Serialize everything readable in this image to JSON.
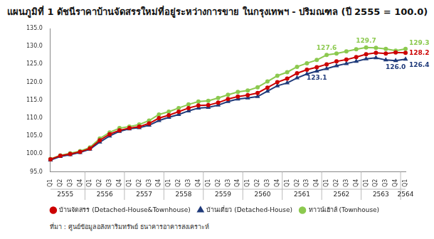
{
  "chart_data": {
    "type": "line",
    "title": "แผนภูมิที่ 1 ดัชนีราคาบ้านจัดสรรใหม่ที่อยู่ระหว่างการขาย ในกรุงเทพฯ - ปริมณฑล (ปี 2555 = 100.0)",
    "source": "ที่มา : ศูนย์ข้อมูลอสังหาริมทรัพย์ ธนาคารอาคารสงเคราะห์",
    "categories": [
      "Q1",
      "Q2",
      "Q3",
      "Q4",
      "Q1",
      "Q2",
      "Q3",
      "Q4",
      "Q1",
      "Q2",
      "Q3",
      "Q4",
      "Q1",
      "Q2",
      "Q3",
      "Q4",
      "Q1",
      "Q2",
      "Q3",
      "Q4",
      "Q1",
      "Q2",
      "Q3",
      "Q4",
      "Q1",
      "Q2",
      "Q3",
      "Q4",
      "Q1",
      "Q2",
      "Q3",
      "Q4",
      "Q1",
      "Q2",
      "Q3",
      "Q4",
      "Q1"
    ],
    "category_groups": [
      "2555",
      "2555",
      "2555",
      "2555",
      "2556",
      "2556",
      "2556",
      "2556",
      "2557",
      "2557",
      "2557",
      "2557",
      "2558",
      "2558",
      "2558",
      "2558",
      "2559",
      "2559",
      "2559",
      "2559",
      "2560",
      "2560",
      "2560",
      "2560",
      "2561",
      "2561",
      "2561",
      "2561",
      "2562",
      "2562",
      "2562",
      "2562",
      "2563",
      "2563",
      "2563",
      "2563",
      "2564"
    ],
    "ylim": [
      95,
      135
    ],
    "yticks": [
      {
        "value": 95,
        "label": "95.0"
      },
      {
        "value": 100,
        "label": "100.0"
      },
      {
        "value": 105,
        "label": "105.0"
      },
      {
        "value": 110,
        "label": "110.0"
      },
      {
        "value": 115,
        "label": "115.0"
      },
      {
        "value": 120,
        "label": "120.0"
      },
      {
        "value": 125,
        "label": "125.0"
      },
      {
        "value": 130,
        "label": "130.0"
      },
      {
        "value": 135,
        "label": "135.0"
      }
    ],
    "grid": false,
    "legend": "bottom",
    "series": [
      {
        "name": "บ้านจัดสรร (Detached-House&Townhouse)",
        "color": "#cc0000",
        "marker": "circle",
        "values": [
          98.5,
          99.5,
          100.0,
          100.6,
          101.5,
          103.8,
          105.5,
          106.6,
          107.2,
          107.6,
          108.5,
          110.0,
          110.8,
          111.8,
          112.8,
          113.5,
          113.6,
          114.3,
          115.3,
          116.0,
          116.4,
          117.0,
          118.5,
          120.0,
          121.0,
          122.5,
          123.5,
          124.2,
          125.0,
          125.8,
          126.3,
          127.0,
          127.8,
          128.2,
          128.0,
          128.3,
          128.2
        ],
        "value_labels": [
          null,
          null,
          null,
          null,
          null,
          null,
          null,
          null,
          null,
          null,
          null,
          null,
          null,
          null,
          null,
          null,
          null,
          null,
          null,
          null,
          null,
          null,
          null,
          null,
          null,
          null,
          null,
          null,
          null,
          null,
          null,
          null,
          null,
          null,
          null,
          null,
          "128.2"
        ]
      },
      {
        "name": "บ้านเดี่ยว (Detached-House)",
        "color": "#1f3a7a",
        "marker": "triangle",
        "values": [
          98.3,
          99.3,
          99.8,
          100.4,
          101.3,
          103.3,
          105.0,
          106.3,
          107.0,
          107.3,
          108.0,
          109.3,
          110.2,
          111.0,
          112.0,
          112.8,
          113.0,
          113.6,
          114.6,
          115.3,
          115.6,
          116.0,
          117.5,
          119.0,
          119.8,
          121.2,
          122.3,
          123.1,
          123.8,
          124.6,
          125.2,
          125.8,
          126.5,
          126.8,
          126.2,
          126.0,
          126.4
        ],
        "value_labels": [
          null,
          null,
          null,
          null,
          null,
          null,
          null,
          null,
          null,
          null,
          null,
          null,
          null,
          null,
          null,
          null,
          null,
          null,
          null,
          null,
          null,
          null,
          null,
          null,
          null,
          null,
          null,
          "123.1",
          null,
          null,
          null,
          null,
          null,
          null,
          null,
          "126.0",
          "126.4"
        ]
      },
      {
        "name": "ทาวน์เฮ้าส์ (Townhouse)",
        "color": "#8cc94f",
        "marker": "circle",
        "values": [
          98.6,
          99.6,
          100.2,
          100.8,
          101.8,
          104.3,
          106.0,
          107.2,
          107.6,
          108.2,
          109.3,
          111.0,
          111.8,
          112.8,
          113.8,
          114.6,
          114.8,
          115.6,
          116.5,
          117.3,
          117.7,
          118.6,
          120.2,
          121.8,
          122.8,
          124.3,
          125.3,
          126.2,
          127.6,
          128.0,
          128.6,
          129.2,
          129.7,
          129.6,
          129.3,
          128.8,
          129.3
        ],
        "value_labels": [
          null,
          null,
          null,
          null,
          null,
          null,
          null,
          null,
          null,
          null,
          null,
          null,
          null,
          null,
          null,
          null,
          null,
          null,
          null,
          null,
          null,
          null,
          null,
          null,
          null,
          null,
          null,
          null,
          "127.6",
          null,
          null,
          null,
          "129.7",
          null,
          null,
          null,
          "129.3"
        ]
      }
    ]
  }
}
